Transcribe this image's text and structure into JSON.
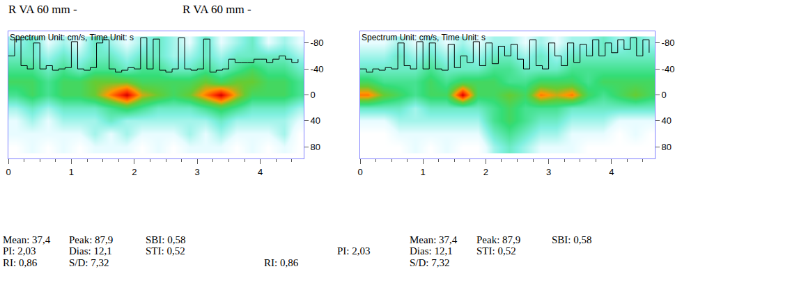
{
  "chart_data": [
    {
      "type": "heatmap",
      "header": "R VA 60 mm -",
      "title": "Spectrum Unit: cm/s, Time Unit: s",
      "x": [
        0.125,
        0.375,
        0.625,
        0.875,
        1.125,
        1.375,
        1.625,
        1.875,
        2.125,
        2.375,
        2.625,
        2.875,
        3.125,
        3.375,
        3.625,
        3.875,
        4.125,
        4.375,
        4.625
      ],
      "y": [
        -80,
        -60,
        -40,
        -20,
        0,
        20,
        40,
        60,
        80
      ],
      "cells": [
        [
          2,
          3,
          1,
          2,
          1,
          3,
          2,
          1,
          2,
          3,
          2,
          1,
          3,
          1,
          2,
          3,
          1,
          2,
          1
        ],
        [
          3,
          3,
          2,
          3,
          2,
          3,
          3,
          2,
          3,
          3,
          2,
          2,
          3,
          2,
          3,
          3,
          3,
          3,
          2
        ],
        [
          4,
          4,
          3,
          4,
          3,
          4,
          4,
          3,
          4,
          4,
          3,
          3,
          4,
          3,
          4,
          5,
          4,
          4,
          3
        ],
        [
          5,
          5,
          4,
          5,
          5,
          6,
          6,
          6,
          5,
          5,
          5,
          5,
          6,
          5,
          6,
          6,
          5,
          5,
          4
        ],
        [
          4,
          5,
          4,
          5,
          5,
          6,
          8,
          10,
          7,
          6,
          5,
          6,
          8,
          10,
          7,
          5,
          5,
          5,
          4
        ],
        [
          2,
          3,
          2,
          3,
          3,
          3,
          4,
          5,
          4,
          3,
          3,
          3,
          4,
          5,
          4,
          3,
          3,
          3,
          2
        ],
        [
          1,
          2,
          1,
          2,
          2,
          2,
          3,
          2,
          2,
          2,
          2,
          2,
          2,
          3,
          2,
          2,
          2,
          2,
          1
        ],
        [
          1,
          1,
          1,
          1,
          1,
          2,
          1,
          2,
          1,
          1,
          1,
          2,
          1,
          2,
          1,
          1,
          1,
          2,
          0
        ],
        [
          0,
          1,
          0,
          1,
          0,
          1,
          1,
          1,
          0,
          1,
          0,
          1,
          1,
          1,
          0,
          1,
          0,
          1,
          0
        ]
      ],
      "series": [
        {
          "type": "line",
          "color": "#000000",
          "x": [
            0,
            0.1,
            0.2,
            0.3,
            0.4,
            0.5,
            0.6,
            0.7,
            0.8,
            0.9,
            1.0,
            1.1,
            1.2,
            1.3,
            1.4,
            1.5,
            1.6,
            1.7,
            1.8,
            1.9,
            2.0,
            2.1,
            2.2,
            2.3,
            2.4,
            2.5,
            2.6,
            2.7,
            2.8,
            2.9,
            3.0,
            3.1,
            3.2,
            3.3,
            3.4,
            3.5,
            3.6,
            3.7,
            3.8,
            3.9,
            4.0,
            4.1,
            4.2,
            4.3,
            4.4,
            4.5,
            4.6
          ],
          "values": [
            -60,
            -85,
            -45,
            -40,
            -80,
            -40,
            -45,
            -38,
            -40,
            -42,
            -82,
            -40,
            -38,
            -42,
            -80,
            -85,
            -40,
            -35,
            -38,
            -42,
            -40,
            -88,
            -40,
            -86,
            -38,
            -35,
            -40,
            -88,
            -40,
            -38,
            -40,
            -86,
            -35,
            -38,
            -40,
            -55,
            -50,
            -50,
            -50,
            -55,
            -55,
            -50,
            -55,
            -60,
            -55,
            -50,
            -55
          ]
        }
      ],
      "xlim": [
        0,
        4.69
      ],
      "xticks": [
        0,
        1,
        2,
        3,
        4
      ],
      "ylim": [
        98,
        -98
      ],
      "yticks": [
        -80,
        -40,
        0,
        40,
        80
      ],
      "grid": false,
      "stats": [
        "Mean: 37,4",
        "Peak: 87,9",
        "SBI: 0,58",
        "PI: 2,03",
        "Dias: 12,1",
        "STI: 0,52",
        "RI: 0,86",
        "S/D: 7,32"
      ]
    },
    {
      "type": "heatmap",
      "header": "R VA 60 mm -",
      "title": "Spectrum Unit: cm/s, Time Unit: s",
      "x": [
        0.125,
        0.375,
        0.625,
        0.875,
        1.125,
        1.375,
        1.625,
        1.875,
        2.125,
        2.375,
        2.625,
        2.875,
        3.125,
        3.375,
        3.625,
        3.875,
        4.125,
        4.375,
        4.625
      ],
      "y": [
        -80,
        -60,
        -40,
        -20,
        0,
        20,
        40,
        60,
        80
      ],
      "cells": [
        [
          1,
          1,
          2,
          1,
          2,
          1,
          2,
          1,
          2,
          2,
          1,
          2,
          1,
          2,
          2,
          3,
          2,
          3,
          2
        ],
        [
          2,
          2,
          3,
          2,
          3,
          2,
          3,
          2,
          3,
          3,
          2,
          3,
          2,
          3,
          3,
          3,
          3,
          3,
          3
        ],
        [
          3,
          3,
          3,
          3,
          4,
          3,
          3,
          3,
          4,
          4,
          3,
          3,
          3,
          4,
          4,
          4,
          4,
          4,
          4
        ],
        [
          5,
          4,
          4,
          4,
          5,
          4,
          5,
          5,
          5,
          4,
          4,
          5,
          5,
          5,
          4,
          5,
          5,
          5,
          5
        ],
        [
          8,
          6,
          5,
          4,
          5,
          5,
          10,
          5,
          5,
          6,
          5,
          8,
          7,
          8,
          5,
          4,
          5,
          6,
          5
        ],
        [
          3,
          3,
          3,
          2,
          3,
          3,
          3,
          3,
          4,
          5,
          4,
          4,
          4,
          3,
          3,
          3,
          3,
          3,
          3
        ],
        [
          1,
          1,
          2,
          2,
          2,
          2,
          2,
          2,
          4,
          5,
          4,
          3,
          3,
          2,
          2,
          2,
          1,
          1,
          1
        ],
        [
          0,
          0,
          1,
          1,
          1,
          1,
          1,
          1,
          3,
          4,
          3,
          2,
          2,
          1,
          1,
          1,
          0,
          1,
          0
        ],
        [
          0,
          0,
          0,
          1,
          0,
          1,
          0,
          0,
          2,
          3,
          2,
          1,
          1,
          1,
          0,
          0,
          0,
          0,
          0
        ]
      ],
      "series": [
        {
          "type": "line",
          "color": "#000000",
          "x": [
            0,
            0.1,
            0.2,
            0.3,
            0.4,
            0.5,
            0.6,
            0.7,
            0.8,
            0.9,
            1.0,
            1.1,
            1.2,
            1.3,
            1.4,
            1.5,
            1.6,
            1.7,
            1.8,
            1.9,
            2.0,
            2.1,
            2.2,
            2.3,
            2.4,
            2.5,
            2.6,
            2.7,
            2.8,
            2.9,
            3.0,
            3.1,
            3.2,
            3.3,
            3.4,
            3.5,
            3.6,
            3.7,
            3.8,
            3.9,
            4.0,
            4.1,
            4.2,
            4.3,
            4.4,
            4.5,
            4.6
          ],
          "values": [
            -40,
            -35,
            -40,
            -38,
            -42,
            -40,
            -80,
            -45,
            -40,
            -82,
            -40,
            -80,
            -40,
            -38,
            -78,
            -42,
            -60,
            -50,
            -82,
            -45,
            -80,
            -48,
            -75,
            -60,
            -78,
            -55,
            -40,
            -85,
            -45,
            -40,
            -80,
            -60,
            -45,
            -80,
            -50,
            -78,
            -60,
            -85,
            -60,
            -80,
            -65,
            -85,
            -70,
            -88,
            -60,
            -85,
            -65
          ]
        }
      ],
      "xlim": [
        0,
        4.69
      ],
      "xticks": [
        0,
        1,
        2,
        3,
        4
      ],
      "ylim": [
        98,
        -98
      ],
      "yticks": [
        -80,
        -40,
        0,
        40,
        80
      ],
      "grid": false,
      "stats": [
        "Mean: 37,4",
        "Peak: 87,9",
        "SBI: 0,58",
        "PI: 2,03",
        "Dias: 12,1",
        "STI: 0,52",
        "RI: 0,86",
        "S/D: 7,32"
      ]
    }
  ]
}
